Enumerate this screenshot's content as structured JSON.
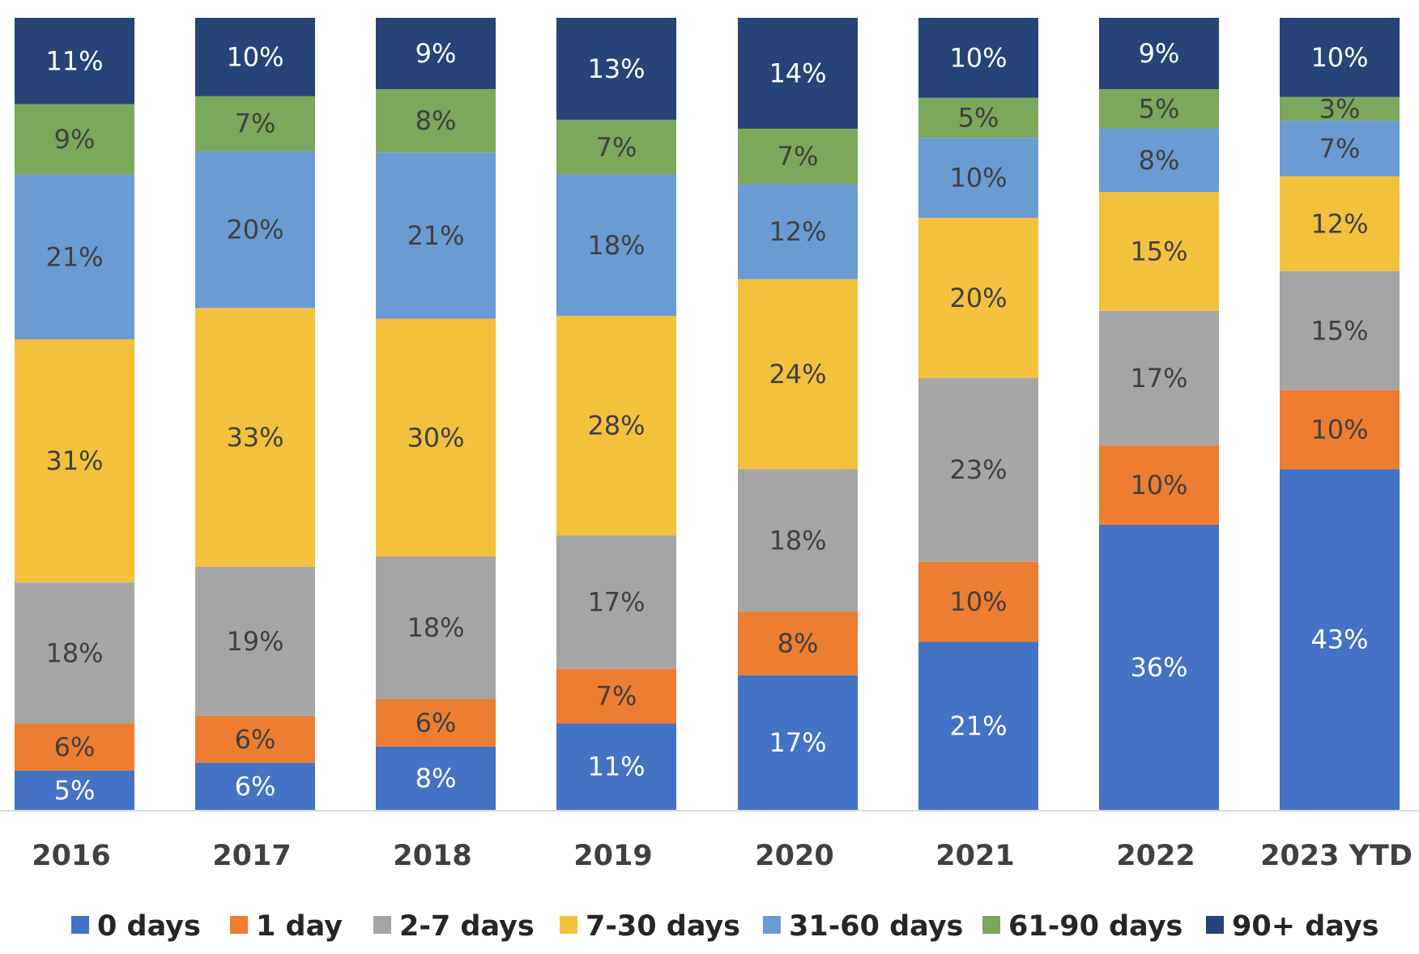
{
  "chart_data": {
    "type": "bar",
    "stacked": true,
    "categories": [
      "2016",
      "2017",
      "2018",
      "2019",
      "2020",
      "2021",
      "2022",
      "2023 YTD"
    ],
    "series": [
      {
        "name": "0 days",
        "color": "#4472c4",
        "values": [
          5,
          6,
          8,
          11,
          17,
          21,
          36,
          43
        ],
        "labels": [
          "5%",
          "6%",
          "8%",
          "11%",
          "17%",
          "21%",
          "36%",
          "43%"
        ]
      },
      {
        "name": "1 day",
        "color": "#ed7d31",
        "values": [
          6,
          6,
          6,
          7,
          8,
          10,
          10,
          10
        ],
        "labels": [
          "6%",
          "6%",
          "6%",
          "7%",
          "8%",
          "10%",
          "10%",
          "10%"
        ]
      },
      {
        "name": "2-7 days",
        "color": "#a5a5a5",
        "values": [
          18,
          19,
          18,
          17,
          18,
          23,
          17,
          15
        ],
        "labels": [
          "18%",
          "19%",
          "18%",
          "17%",
          "18%",
          "23%",
          "17%",
          "15%"
        ]
      },
      {
        "name": "7-30 days",
        "color": "#f4c13d",
        "values": [
          31,
          33,
          30,
          28,
          24,
          20,
          15,
          12
        ],
        "labels": [
          "31%",
          "33%",
          "30%",
          "28%",
          "24%",
          "20%",
          "15%",
          "12%"
        ]
      },
      {
        "name": "31-60 days",
        "color": "#6a9bd3",
        "values": [
          21,
          20,
          21,
          18,
          12,
          10,
          8,
          7
        ],
        "labels": [
          "21%",
          "20%",
          "21%",
          "18%",
          "12%",
          "10%",
          "8%",
          "7%"
        ]
      },
      {
        "name": "61-90 days",
        "color": "#7ba85a",
        "values": [
          9,
          7,
          8,
          7,
          7,
          5,
          5,
          3
        ],
        "labels": [
          "9%",
          "7%",
          "8%",
          "7%",
          "7%",
          "5%",
          "5%",
          "3%"
        ]
      },
      {
        "name": "90+ days",
        "color": "#264478",
        "values": [
          11,
          10,
          9,
          13,
          14,
          10,
          9,
          10
        ],
        "labels": [
          "11%",
          "10%",
          "9%",
          "13%",
          "14%",
          "10%",
          "9%",
          "10%"
        ]
      }
    ],
    "title": "",
    "xlabel": "",
    "ylabel": "",
    "grid": false,
    "legend": "bottom",
    "label_colors": {
      "light": "#ffffff",
      "dark": "#404040"
    }
  }
}
